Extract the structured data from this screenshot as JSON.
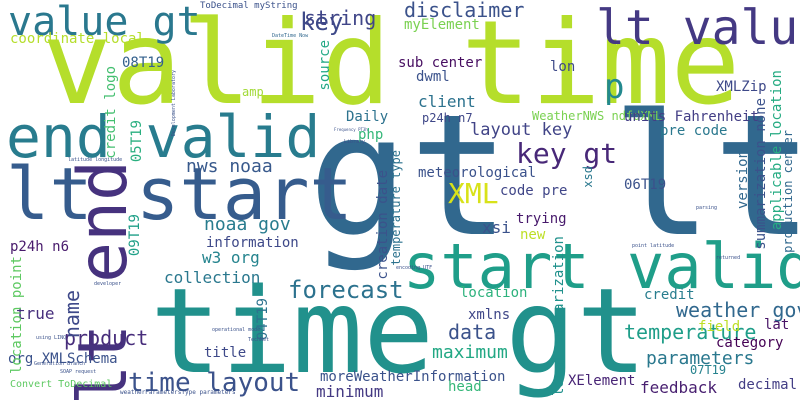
{
  "words": [
    {
      "text": "valid time",
      "color": "#b5de2b"
    },
    {
      "text": "gt lt",
      "color": "#31688e"
    },
    {
      "text": "time gt",
      "color": "#21918c"
    },
    {
      "text": "start valid",
      "color": "#1f9e89"
    },
    {
      "text": "lt start",
      "color": "#365c8d"
    },
    {
      "text": "end valid",
      "color": "#287c8e"
    },
    {
      "text": "lt end",
      "color": "#46327e"
    },
    {
      "text": "value gt",
      "color": "#2a788e"
    },
    {
      "text": "lt value",
      "color": "#443983"
    },
    {
      "text": "time layout",
      "color": "#3b528b"
    },
    {
      "text": "forecast",
      "color": "#2c728e"
    },
    {
      "text": "XML",
      "color": "#d8e219"
    },
    {
      "text": "key gt",
      "color": "#482878"
    },
    {
      "text": "key",
      "color": "#3e4989"
    },
    {
      "text": "p",
      "color": "#23898e"
    },
    {
      "text": "string",
      "color": "#404688"
    },
    {
      "text": "disclaimer",
      "color": "#3b528b"
    },
    {
      "text": "myElement",
      "color": "#7ad151"
    },
    {
      "text": "coordinate local",
      "color": "#b5de2b"
    },
    {
      "text": "product",
      "color": "#472d7b"
    },
    {
      "text": "name",
      "color": "#3e4989"
    },
    {
      "text": "weather gov",
      "color": "#31688e"
    },
    {
      "text": "parameters",
      "color": "#2a788e"
    },
    {
      "text": "temperature",
      "color": "#1f9e89"
    },
    {
      "text": "layout key",
      "color": "#414487"
    },
    {
      "text": "client",
      "color": "#2c728e"
    },
    {
      "text": "data",
      "color": "#3b528b"
    },
    {
      "text": "maximum",
      "color": "#22a884"
    },
    {
      "text": "minimum",
      "color": "#443983"
    },
    {
      "text": "feedback",
      "color": "#481f70"
    },
    {
      "text": "XElement",
      "color": "#482475"
    },
    {
      "text": "decimal",
      "color": "#433e85"
    },
    {
      "text": "category",
      "color": "#440154"
    },
    {
      "text": "lat",
      "color": "#481467"
    },
    {
      "text": "credit",
      "color": "#287d8e"
    },
    {
      "text": "field",
      "color": "#bddf26"
    },
    {
      "text": "lon",
      "color": "#3e4a89"
    },
    {
      "text": "XMLZip",
      "color": "#3e4989"
    },
    {
      "text": "pre code",
      "color": "#2a788e"
    },
    {
      "text": "code pre",
      "color": "#404688"
    },
    {
      "text": "06T19",
      "color": "#3b528b"
    },
    {
      "text": "05T19",
      "color": "#29af7f"
    },
    {
      "text": "09T19",
      "color": "#1fa088"
    },
    {
      "text": "04T19",
      "color": "#2c728e"
    },
    {
      "text": "07T19",
      "color": "#26828e"
    },
    {
      "text": "08T19",
      "color": "#34618d"
    },
    {
      "text": "p24h n6",
      "color": "#481a6c"
    },
    {
      "text": "p24h n7",
      "color": "#3f4788"
    },
    {
      "text": "sub center",
      "color": "#470e61"
    },
    {
      "text": "dwml",
      "color": "#3b528b"
    },
    {
      "text": "Daily",
      "color": "#2c728e"
    },
    {
      "text": "php",
      "color": "#35b779"
    },
    {
      "text": "amp",
      "color": "#a2da37"
    },
    {
      "text": "source",
      "color": "#22a884"
    },
    {
      "text": "credit logo",
      "color": "#44bf70"
    },
    {
      "text": "nws noaa",
      "color": "#38598c"
    },
    {
      "text": "noaa gov",
      "color": "#287c8e"
    },
    {
      "text": "information",
      "color": "#3e4989"
    },
    {
      "text": "w3 org",
      "color": "#25848e"
    },
    {
      "text": "collection",
      "color": "#2a788e"
    },
    {
      "text": "true",
      "color": "#472f7d"
    },
    {
      "text": "title",
      "color": "#3e4989"
    },
    {
      "text": "org XMLSchema",
      "color": "#3b528b"
    },
    {
      "text": "Convert ToDecimal",
      "color": "#5ec962"
    },
    {
      "text": "moreWeatherInformation",
      "color": "#3b528b"
    },
    {
      "text": "head",
      "color": "#35b779"
    },
    {
      "text": "xmlns",
      "color": "#3f4788"
    },
    {
      "text": "location",
      "color": "#2db27d"
    },
    {
      "text": "xsi",
      "color": "#3b528b"
    },
    {
      "text": "new",
      "color": "#bddf26"
    },
    {
      "text": "trying",
      "color": "#481a6c"
    },
    {
      "text": "meteorological",
      "color": "#3b528b"
    },
    {
      "text": "creation date",
      "color": "#3b528b"
    },
    {
      "text": "temperature type",
      "color": "#2c728e"
    },
    {
      "text": "local summarization",
      "color": "#21918c"
    },
    {
      "text": "xsd",
      "color": "#2a788e"
    },
    {
      "text": "WeatherNWS ndfdXML",
      "color": "#7ad151"
    },
    {
      "text": "units Fahrenheit",
      "color": "#433e85"
    },
    {
      "text": "version",
      "color": "#31688e"
    },
    {
      "text": "summarization none",
      "color": "#3b528b"
    },
    {
      "text": "applicable location",
      "color": "#25ab82"
    },
    {
      "text": "production center",
      "color": "#31688e"
    },
    {
      "text": "location point",
      "color": "#5ec962"
    },
    {
      "text": "ToDecimal myString",
      "color": "#3b528b"
    },
    {
      "text": "DateTime Now",
      "color": "#31688e"
    },
    {
      "text": "Development Laboratory",
      "color": "#3b528b"
    },
    {
      "text": "Generation Branch",
      "color": "#3b528b"
    },
    {
      "text": "weatherParametersType parameters",
      "color": "#3b528b"
    },
    {
      "text": "operational mode",
      "color": "#3b528b"
    },
    {
      "text": "latitude longitude",
      "color": "#3b528b"
    },
    {
      "text": "Frequency PT3h",
      "color": "#3b528b"
    },
    {
      "text": "Library",
      "color": "#3b528b"
    },
    {
      "text": "SOAP request",
      "color": "#3b528b"
    },
    {
      "text": "using LINQ",
      "color": "#3b528b"
    },
    {
      "text": "encoding UTF",
      "color": "#3b528b"
    },
    {
      "text": "point latitude",
      "color": "#3b528b"
    },
    {
      "text": "returned",
      "color": "#3b528b"
    },
    {
      "text": "TechNet",
      "color": "#3b528b"
    },
    {
      "text": "parsing",
      "color": "#3b528b"
    },
    {
      "text": "developer",
      "color": "#3b528b"
    }
  ]
}
